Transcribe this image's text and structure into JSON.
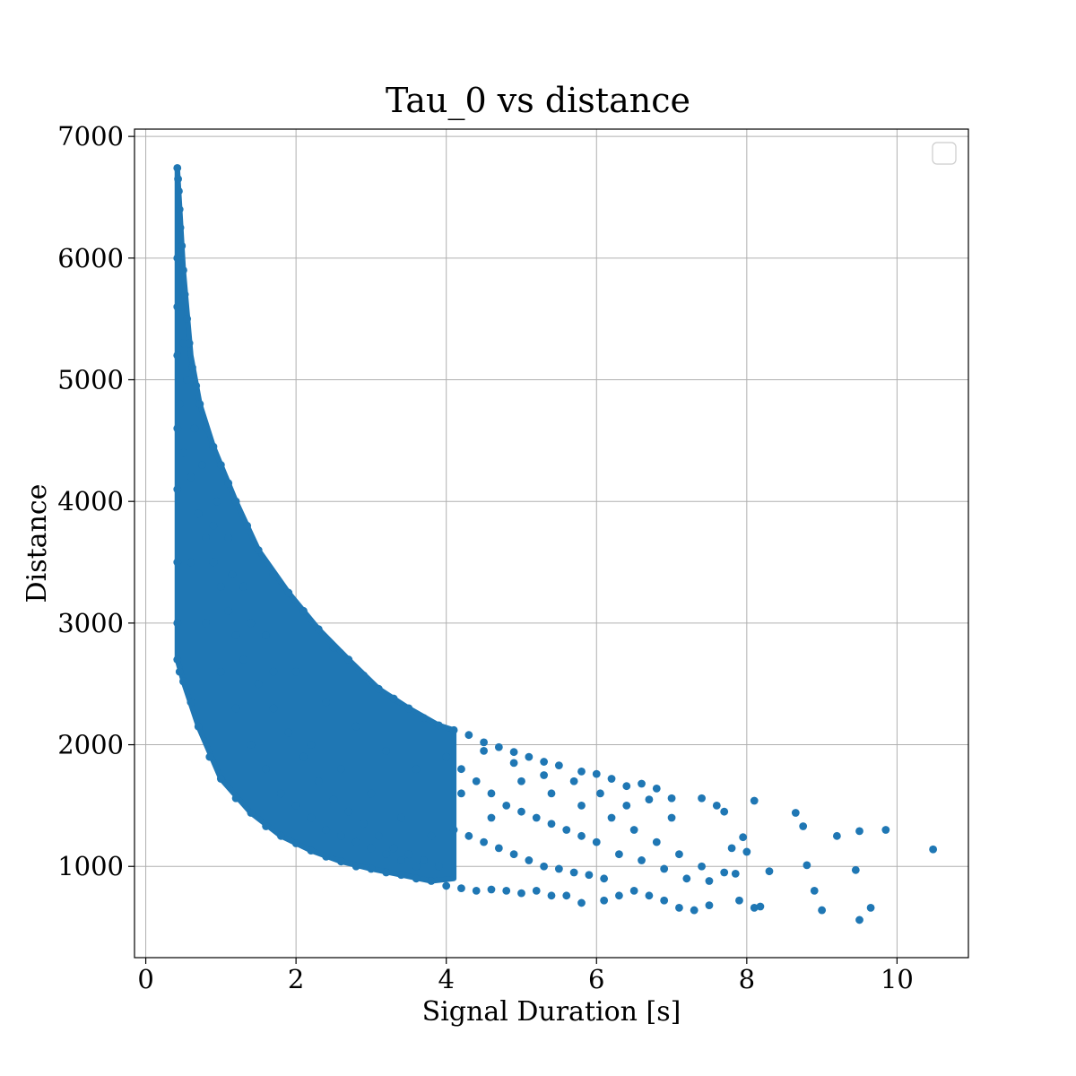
{
  "chart_data": {
    "type": "scatter",
    "title": "Tau_0 vs distance",
    "xlabel": "Signal Duration [s]",
    "ylabel": "Distance",
    "xlim": [
      -0.15,
      10.95
    ],
    "ylim": [
      250,
      7060
    ],
    "xticks": [
      0,
      2,
      4,
      6,
      8,
      10
    ],
    "yticks": [
      1000,
      2000,
      3000,
      4000,
      5000,
      6000,
      7000
    ],
    "xtick_labels": [
      "0",
      "2",
      "4",
      "6",
      "8",
      "10"
    ],
    "ytick_labels": [
      "1000",
      "2000",
      "3000",
      "4000",
      "5000",
      "6000",
      "7000"
    ],
    "grid": true,
    "legend": {
      "placement": "top-right",
      "entries": []
    },
    "marker_color": "#1f77b4",
    "series": [
      {
        "points": [
          [
            0.42,
            6740
          ],
          [
            0.43,
            6650
          ],
          [
            0.44,
            6550
          ],
          [
            0.45,
            6400
          ],
          [
            0.46,
            6250
          ],
          [
            0.48,
            6100
          ],
          [
            0.5,
            5900
          ],
          [
            0.52,
            5700
          ],
          [
            0.55,
            5500
          ],
          [
            0.58,
            5300
          ],
          [
            0.62,
            5100
          ],
          [
            0.67,
            4950
          ],
          [
            0.72,
            4800
          ],
          [
            0.8,
            4600
          ],
          [
            0.9,
            4450
          ],
          [
            1.0,
            4300
          ],
          [
            1.1,
            4150
          ],
          [
            1.2,
            4000
          ],
          [
            1.35,
            3800
          ],
          [
            1.5,
            3600
          ],
          [
            1.7,
            3400
          ],
          [
            1.9,
            3250
          ],
          [
            2.1,
            3100
          ],
          [
            2.3,
            2950
          ],
          [
            2.5,
            2800
          ],
          [
            2.7,
            2700
          ],
          [
            2.9,
            2570
          ],
          [
            3.1,
            2460
          ],
          [
            3.3,
            2380
          ],
          [
            3.5,
            2300
          ],
          [
            3.7,
            2220
          ],
          [
            3.9,
            2160
          ],
          [
            4.1,
            2120
          ],
          [
            4.3,
            2080
          ],
          [
            4.5,
            2020
          ],
          [
            4.7,
            1980
          ],
          [
            4.9,
            1940
          ],
          [
            5.1,
            1900
          ],
          [
            5.3,
            1860
          ],
          [
            5.5,
            1830
          ],
          [
            5.8,
            1780
          ],
          [
            6.0,
            1760
          ],
          [
            6.2,
            1720
          ],
          [
            6.4,
            1660
          ],
          [
            6.6,
            1680
          ],
          [
            6.8,
            1640
          ],
          [
            7.0,
            1560
          ],
          [
            7.4,
            1560
          ],
          [
            7.6,
            1500
          ],
          [
            7.7,
            1450
          ],
          [
            8.1,
            1540
          ],
          [
            8.65,
            1440
          ],
          [
            8.75,
            1330
          ],
          [
            9.2,
            1250
          ],
          [
            9.5,
            1290
          ],
          [
            9.85,
            1300
          ],
          [
            10.48,
            1140
          ],
          [
            9.45,
            970
          ],
          [
            9.5,
            560
          ],
          [
            9.65,
            660
          ],
          [
            8.9,
            800
          ],
          [
            9.0,
            640
          ],
          [
            8.8,
            1010
          ],
          [
            8.3,
            960
          ],
          [
            8.1,
            660
          ],
          [
            8.18,
            670
          ],
          [
            7.9,
            720
          ],
          [
            7.85,
            940
          ],
          [
            7.5,
            680
          ],
          [
            7.3,
            640
          ],
          [
            7.1,
            660
          ],
          [
            6.9,
            720
          ],
          [
            6.7,
            760
          ],
          [
            6.5,
            800
          ],
          [
            6.3,
            760
          ],
          [
            6.1,
            720
          ],
          [
            5.8,
            700
          ],
          [
            5.6,
            760
          ],
          [
            5.4,
            760
          ],
          [
            5.2,
            800
          ],
          [
            5.0,
            780
          ],
          [
            4.8,
            800
          ],
          [
            4.6,
            810
          ],
          [
            4.4,
            800
          ],
          [
            4.2,
            820
          ],
          [
            4.0,
            840
          ],
          [
            3.8,
            880
          ],
          [
            3.6,
            900
          ],
          [
            3.4,
            930
          ],
          [
            3.2,
            950
          ],
          [
            3.0,
            980
          ],
          [
            2.8,
            1000
          ],
          [
            2.6,
            1040
          ],
          [
            2.4,
            1080
          ],
          [
            2.2,
            1130
          ],
          [
            2.0,
            1190
          ],
          [
            1.8,
            1250
          ],
          [
            1.6,
            1330
          ],
          [
            1.4,
            1440
          ],
          [
            1.2,
            1560
          ],
          [
            1.0,
            1720
          ],
          [
            0.85,
            1900
          ],
          [
            0.7,
            2150
          ],
          [
            0.6,
            2350
          ],
          [
            0.5,
            2520
          ],
          [
            0.45,
            2600
          ],
          [
            0.42,
            2700
          ],
          [
            0.42,
            4100
          ],
          [
            0.42,
            4600
          ],
          [
            0.42,
            5200
          ],
          [
            0.42,
            5600
          ],
          [
            0.42,
            6000
          ],
          [
            0.42,
            3500
          ],
          [
            0.42,
            3000
          ],
          [
            0.45,
            4800
          ],
          [
            0.5,
            4400
          ],
          [
            0.6,
            4200
          ],
          [
            0.7,
            3900
          ],
          [
            0.8,
            3700
          ],
          [
            0.9,
            3500
          ],
          [
            1.0,
            3300
          ],
          [
            1.1,
            3100
          ],
          [
            1.2,
            2900
          ],
          [
            1.3,
            2700
          ],
          [
            1.5,
            2500
          ],
          [
            1.7,
            2300
          ],
          [
            1.9,
            2100
          ],
          [
            2.1,
            1900
          ],
          [
            2.3,
            1700
          ],
          [
            2.5,
            1550
          ],
          [
            2.7,
            1450
          ],
          [
            2.9,
            1350
          ],
          [
            3.1,
            1250
          ],
          [
            3.3,
            1150
          ],
          [
            3.5,
            1100
          ],
          [
            3.7,
            1050
          ],
          [
            3.9,
            1000
          ],
          [
            0.6,
            3500
          ],
          [
            0.8,
            3000
          ],
          [
            1.0,
            2600
          ],
          [
            1.2,
            2300
          ],
          [
            1.4,
            2000
          ],
          [
            1.6,
            1800
          ],
          [
            1.8,
            1600
          ],
          [
            2.0,
            1500
          ],
          [
            2.2,
            1400
          ],
          [
            2.4,
            1300
          ],
          [
            2.6,
            1250
          ],
          [
            2.8,
            1200
          ],
          [
            3.0,
            1150
          ],
          [
            3.2,
            1100
          ],
          [
            3.4,
            1050
          ],
          [
            3.6,
            1000
          ],
          [
            4.0,
            1900
          ],
          [
            4.2,
            1800
          ],
          [
            4.4,
            1700
          ],
          [
            4.6,
            1600
          ],
          [
            4.8,
            1500
          ],
          [
            5.0,
            1450
          ],
          [
            5.2,
            1400
          ],
          [
            5.4,
            1350
          ],
          [
            5.6,
            1300
          ],
          [
            5.8,
            1250
          ],
          [
            6.0,
            1200
          ],
          [
            4.1,
            1300
          ],
          [
            4.3,
            1250
          ],
          [
            4.5,
            1200
          ],
          [
            4.7,
            1150
          ],
          [
            4.9,
            1100
          ],
          [
            5.1,
            1050
          ],
          [
            5.3,
            1000
          ],
          [
            5.5,
            980
          ],
          [
            5.7,
            950
          ],
          [
            5.9,
            930
          ],
          [
            6.1,
            900
          ],
          [
            4.2,
            1600
          ],
          [
            4.6,
            1400
          ],
          [
            5.0,
            1700
          ],
          [
            5.4,
            1600
          ],
          [
            5.8,
            1500
          ],
          [
            6.2,
            1400
          ],
          [
            6.5,
            1300
          ],
          [
            6.8,
            1200
          ],
          [
            7.1,
            1100
          ],
          [
            7.4,
            1000
          ],
          [
            7.7,
            950
          ],
          [
            6.3,
            1100
          ],
          [
            6.6,
            1050
          ],
          [
            6.9,
            980
          ],
          [
            7.2,
            900
          ],
          [
            7.5,
            880
          ],
          [
            7.8,
            1150
          ],
          [
            8.0,
            1120
          ],
          [
            7.95,
            1240
          ],
          [
            7.0,
            1400
          ],
          [
            6.7,
            1550
          ],
          [
            6.4,
            1500
          ],
          [
            6.05,
            1600
          ],
          [
            5.7,
            1700
          ],
          [
            5.3,
            1750
          ],
          [
            4.9,
            1850
          ],
          [
            4.5,
            1950
          ],
          [
            3.6,
            1800
          ],
          [
            3.2,
            1950
          ],
          [
            2.8,
            2150
          ],
          [
            2.4,
            2350
          ],
          [
            2.0,
            2600
          ],
          [
            1.6,
            2900
          ],
          [
            1.3,
            3300
          ],
          [
            1.1,
            3700
          ],
          [
            0.95,
            4000
          ],
          [
            0.75,
            4300
          ],
          [
            0.65,
            4600
          ],
          [
            0.55,
            5000
          ],
          [
            0.5,
            5300
          ],
          [
            0.47,
            5600
          ],
          [
            2.2,
            2000
          ],
          [
            2.6,
            1800
          ],
          [
            3.0,
            1600
          ],
          [
            3.4,
            1400
          ],
          [
            3.8,
            1250
          ],
          [
            1.7,
            2600
          ],
          [
            1.4,
            3000
          ],
          [
            1.15,
            3400
          ],
          [
            0.9,
            3800
          ]
        ]
      }
    ]
  }
}
